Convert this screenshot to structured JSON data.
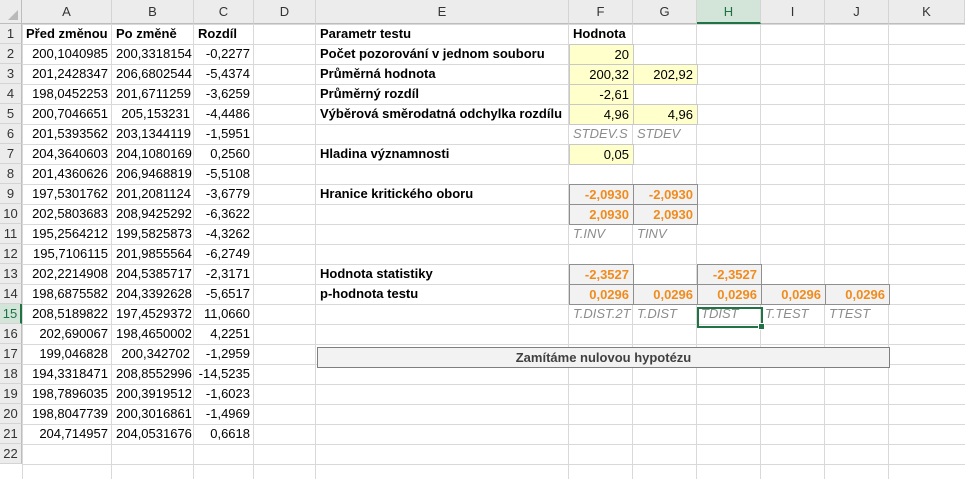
{
  "columns": [
    "A",
    "B",
    "C",
    "D",
    "E",
    "F",
    "G",
    "H",
    "I",
    "J",
    "K"
  ],
  "rows": [
    "1",
    "2",
    "3",
    "4",
    "5",
    "6",
    "7",
    "8",
    "9",
    "10",
    "11",
    "12",
    "13",
    "14",
    "15",
    "16",
    "17",
    "18",
    "19",
    "20",
    "21",
    "22"
  ],
  "data_headers": {
    "a": "Před změnou",
    "b": "Po změně",
    "c": "Rozdíl"
  },
  "data_rows": [
    {
      "a": "200,1040985",
      "b": "200,3318154",
      "c": "-0,2277"
    },
    {
      "a": "201,2428347",
      "b": "206,6802544",
      "c": "-5,4374"
    },
    {
      "a": "198,0452253",
      "b": "201,6711259",
      "c": "-3,6259"
    },
    {
      "a": "200,7046651",
      "b": "205,153231",
      "c": "-4,4486"
    },
    {
      "a": "201,5393562",
      "b": "203,1344119",
      "c": "-1,5951"
    },
    {
      "a": "204,3640603",
      "b": "204,1080169",
      "c": "0,2560"
    },
    {
      "a": "201,4360626",
      "b": "206,9468819",
      "c": "-5,5108"
    },
    {
      "a": "197,5301762",
      "b": "201,2081124",
      "c": "-3,6779"
    },
    {
      "a": "202,5803683",
      "b": "208,9425292",
      "c": "-6,3622"
    },
    {
      "a": "195,2564212",
      "b": "199,5825873",
      "c": "-4,3262"
    },
    {
      "a": "195,7106115",
      "b": "201,9855564",
      "c": "-6,2749"
    },
    {
      "a": "202,2214908",
      "b": "204,5385717",
      "c": "-2,3171"
    },
    {
      "a": "198,6875582",
      "b": "204,3392628",
      "c": "-5,6517"
    },
    {
      "a": "208,5189822",
      "b": "197,4529372",
      "c": "11,0660"
    },
    {
      "a": "202,690067",
      "b": "198,4650002",
      "c": "4,2251"
    },
    {
      "a": "199,046828",
      "b": "200,342702",
      "c": "-1,2959"
    },
    {
      "a": "194,3318471",
      "b": "208,8552996",
      "c": "-14,5235"
    },
    {
      "a": "198,7896035",
      "b": "200,3919512",
      "c": "-1,6023"
    },
    {
      "a": "198,8047739",
      "b": "200,3016861",
      "c": "-1,4969"
    },
    {
      "a": "204,714957",
      "b": "204,0531676",
      "c": "0,6618"
    }
  ],
  "params": {
    "header_param": "Parametr testu",
    "header_value": "Hodnota",
    "n_label": "Počet pozorování v jednom souboru",
    "n_value": "20",
    "mean_label": "Průměrná hodnota",
    "mean_f": "200,32",
    "mean_g": "202,92",
    "diff_label": "Průměrný rozdíl",
    "diff_value": "-2,61",
    "sd_label": "Výběrová směrodatná odchylka rozdílu",
    "sd_f": "4,96",
    "sd_g": "4,96",
    "sd_hint_f": "STDEV.S",
    "sd_hint_g": "STDEV",
    "alpha_label": "Hladina významnosti",
    "alpha_value": "0,05",
    "crit_label": "Hranice kritického oboru",
    "crit_low_f": "-2,0930",
    "crit_low_g": "-2,0930",
    "crit_high_f": "2,0930",
    "crit_high_g": "2,0930",
    "crit_hint_f": "T.INV",
    "crit_hint_g": "TINV",
    "stat_label": "Hodnota statistiky",
    "stat_f": "-2,3527",
    "stat_h": "-2,3527",
    "p_label": "p-hodnota testu",
    "p_f": "0,0296",
    "p_g": "0,0296",
    "p_h": "0,0296",
    "p_i": "0,0296",
    "p_j": "0,0296",
    "p_hint_f": "T.DIST.2T",
    "p_hint_g": "T.DIST",
    "p_hint_h": "TDIST",
    "p_hint_i": "T.TEST",
    "p_hint_j": "TTEST"
  },
  "conclusion": "Zamítáme nulovou hypotézu",
  "selected_column": "H",
  "selected_row": "15",
  "colors": {
    "input_fill": "#ffffcc",
    "result_fill": "#f2f2f2",
    "result_text": "#f08c1e",
    "selection": "#217346"
  }
}
